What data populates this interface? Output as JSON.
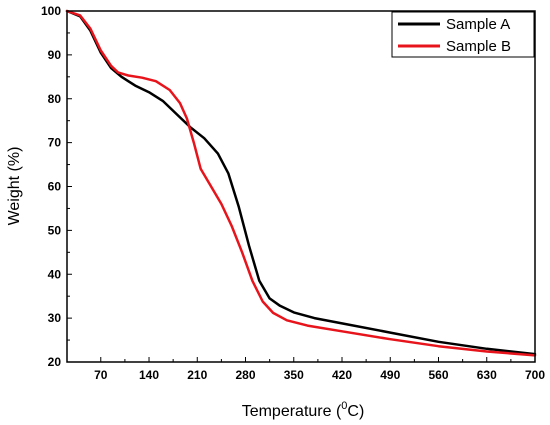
{
  "chart_data": {
    "type": "line",
    "xlabel": "Temperature (",
    "xlabel_sup": "0",
    "xlabel_end": "C)",
    "ylabel": "Weight (%)",
    "xlim": [
      21,
      700
    ],
    "ylim": [
      20,
      100
    ],
    "x_ticks": [
      70,
      140,
      210,
      280,
      350,
      420,
      490,
      560,
      630,
      700
    ],
    "y_ticks": [
      20,
      30,
      40,
      50,
      60,
      70,
      80,
      90,
      100
    ],
    "legend_position": "top-right",
    "grid": false,
    "series": [
      {
        "name": "Sample A",
        "color": "#000000",
        "points": [
          [
            21,
            100
          ],
          [
            40,
            98.8
          ],
          [
            55,
            95.5
          ],
          [
            70,
            90.5
          ],
          [
            85,
            87
          ],
          [
            100,
            85
          ],
          [
            120,
            83
          ],
          [
            140,
            81.5
          ],
          [
            160,
            79.5
          ],
          [
            180,
            76.5
          ],
          [
            200,
            73.5
          ],
          [
            220,
            71
          ],
          [
            240,
            67.5
          ],
          [
            255,
            63
          ],
          [
            270,
            55.5
          ],
          [
            285,
            46.5
          ],
          [
            300,
            38.5
          ],
          [
            315,
            34.5
          ],
          [
            330,
            32.8
          ],
          [
            350,
            31.3
          ],
          [
            380,
            30
          ],
          [
            420,
            28.8
          ],
          [
            490,
            26.7
          ],
          [
            560,
            24.6
          ],
          [
            630,
            23
          ],
          [
            700,
            21.8
          ]
        ]
      },
      {
        "name": "Sample B",
        "color": "#e8141c",
        "points": [
          [
            21,
            100
          ],
          [
            40,
            99
          ],
          [
            55,
            96
          ],
          [
            70,
            91
          ],
          [
            85,
            87.5
          ],
          [
            95,
            86
          ],
          [
            110,
            85.3
          ],
          [
            130,
            84.8
          ],
          [
            150,
            84
          ],
          [
            170,
            82
          ],
          [
            185,
            79
          ],
          [
            195,
            75.5
          ],
          [
            205,
            70
          ],
          [
            215,
            64
          ],
          [
            230,
            60
          ],
          [
            245,
            56
          ],
          [
            260,
            51
          ],
          [
            275,
            45
          ],
          [
            290,
            38.5
          ],
          [
            305,
            33.8
          ],
          [
            320,
            31.2
          ],
          [
            340,
            29.5
          ],
          [
            370,
            28.3
          ],
          [
            420,
            27
          ],
          [
            490,
            25.2
          ],
          [
            560,
            23.6
          ],
          [
            630,
            22.4
          ],
          [
            700,
            21.5
          ]
        ]
      }
    ]
  }
}
